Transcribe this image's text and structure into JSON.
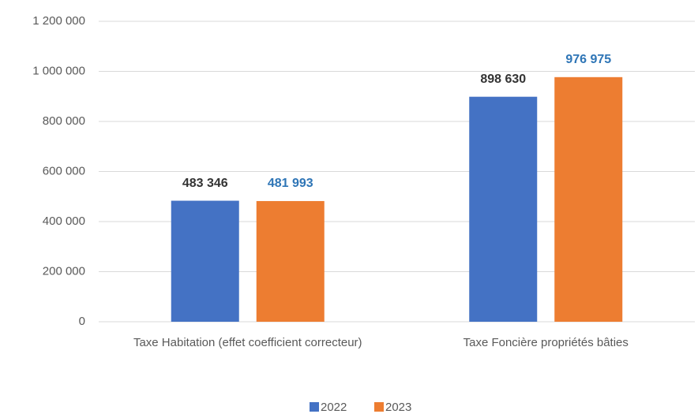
{
  "chart_data": {
    "type": "bar",
    "categories": [
      "Taxe Habitation (effet coefficient correcteur)",
      "Taxe Foncière propriétés bâties"
    ],
    "series": [
      {
        "name": "2022",
        "color": "#4472c4",
        "label_color": "#333333",
        "values": [
          483346,
          898630
        ],
        "value_labels": [
          "483 346",
          "898 630"
        ]
      },
      {
        "name": "2023",
        "color": "#ed7d31",
        "label_color": "#2e75b6",
        "values": [
          481993,
          976975
        ],
        "value_labels": [
          "481 993",
          "976 975"
        ]
      }
    ],
    "ylim": [
      0,
      1200000
    ],
    "yticks": [
      0,
      {
        "value": 200000,
        "label": "200 000"
      },
      {
        "value": 400000,
        "label": "400 000"
      },
      {
        "value": 600000,
        "label": "600 000"
      },
      {
        "value": 800000,
        "label": "800 000"
      },
      {
        "value": 1000000,
        "label": "1 000 000"
      },
      {
        "value": 1200000,
        "label": "1 200 000"
      }
    ],
    "grid": true,
    "legend": "bottom"
  }
}
